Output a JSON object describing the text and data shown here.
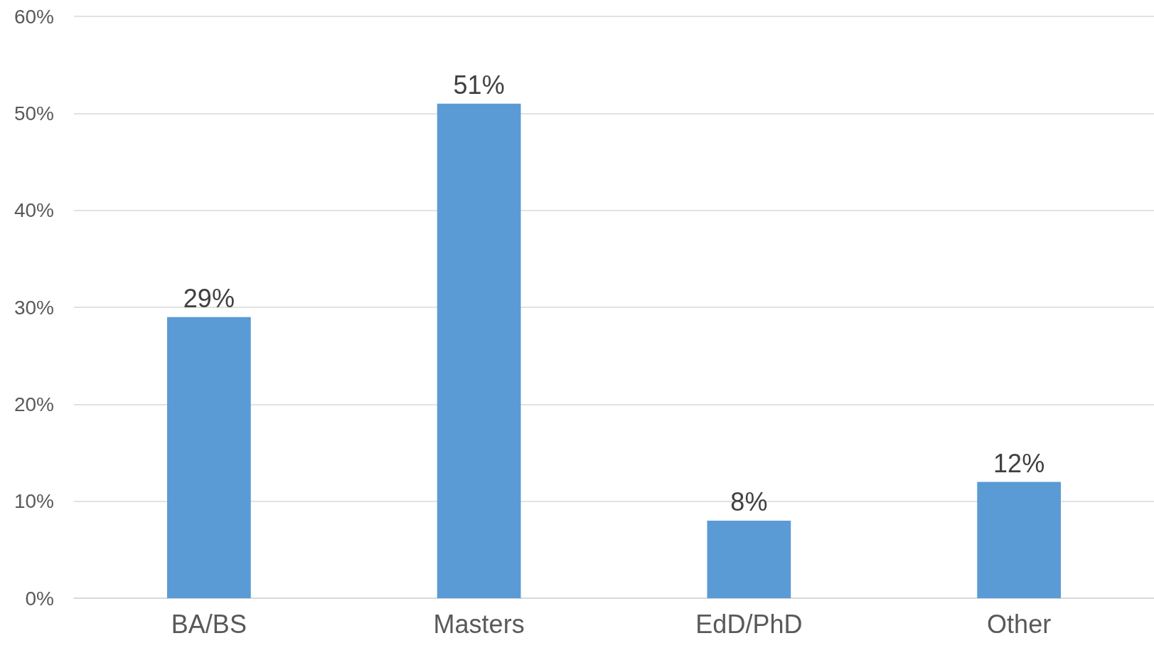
{
  "chart_data": {
    "type": "bar",
    "categories": [
      "BA/BS",
      "Masters",
      "EdD/PhD",
      "Other"
    ],
    "values": [
      29,
      51,
      8,
      12
    ],
    "value_labels": [
      "29%",
      "51%",
      "8%",
      "12%"
    ],
    "color": "#5b9bd5",
    "ylim": [
      0,
      60
    ],
    "yticks": [
      {
        "value": 0,
        "label": "0%"
      },
      {
        "value": 10,
        "label": "10%"
      },
      {
        "value": 20,
        "label": "20%"
      },
      {
        "value": 30,
        "label": "30%"
      },
      {
        "value": 40,
        "label": "40%"
      },
      {
        "value": 50,
        "label": "50%"
      },
      {
        "value": 60,
        "label": "60%"
      }
    ],
    "grid": "y"
  }
}
